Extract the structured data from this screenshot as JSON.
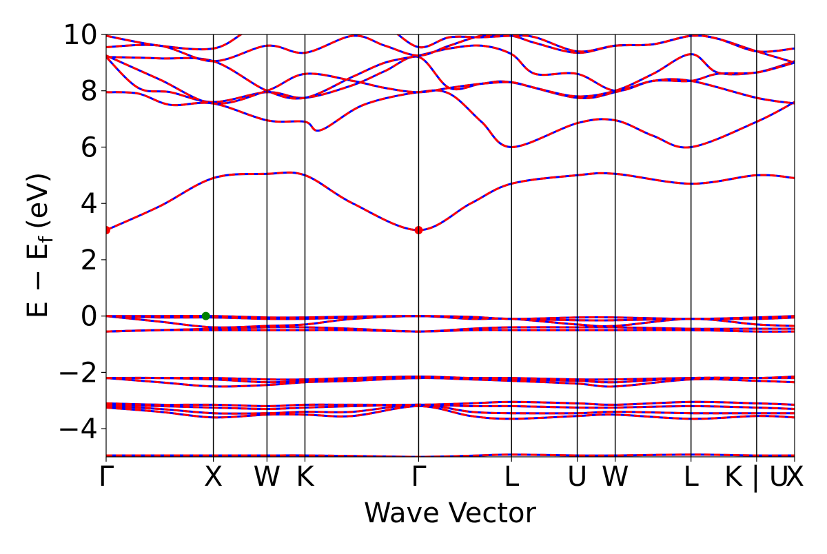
{
  "chart_data": {
    "type": "line",
    "xlabel": "Wave Vector",
    "ylabel": "E − E",
    "ylabel_sub": "f",
    "ylabel_unit": "(eV)",
    "ylim": [
      -5,
      10
    ],
    "yticks": [
      -4,
      -2,
      0,
      2,
      4,
      6,
      8,
      10
    ],
    "ytick_labels": [
      "−4",
      "−2",
      "0",
      "2",
      "4",
      "6",
      "8",
      "10"
    ],
    "grid": false,
    "kpath_labels": [
      {
        "label": "Γ",
        "x": 0.0
      },
      {
        "label": "X",
        "x": 1.0
      },
      {
        "label": "W",
        "x": 1.5
      },
      {
        "label": "K",
        "x": 1.854
      },
      {
        "label": "Γ",
        "x": 2.914
      },
      {
        "label": "L",
        "x": 3.78
      },
      {
        "label": "U",
        "x": 4.393
      },
      {
        "label": "W",
        "x": 4.747
      },
      {
        "label": "L",
        "x": 5.454
      },
      {
        "label": "K | U",
        "x": 6.066
      },
      {
        "label": "X",
        "x": 6.42
      }
    ],
    "kpath_separators": [
      1.0,
      1.5,
      1.854,
      2.914,
      3.78,
      4.393,
      4.747,
      5.454,
      6.066
    ],
    "xlim": [
      0.0,
      6.42
    ],
    "series_styles": [
      {
        "color": "#0000ff",
        "dash": "solid"
      },
      {
        "color": "#ff0000",
        "dash": "dashed"
      }
    ],
    "bands": [
      {
        "x": [
          0,
          0.5,
          1.0,
          1.5,
          1.854,
          2.3,
          2.914,
          3.4,
          3.78,
          4.393,
          4.747,
          5.454,
          6.066,
          6.42
        ],
        "y": [
          -4.95,
          -4.95,
          -4.95,
          -4.95,
          -4.95,
          -4.97,
          -5.0,
          -4.96,
          -4.92,
          -4.95,
          -4.95,
          -4.92,
          -4.95,
          -4.95
        ]
      },
      {
        "x": [
          0,
          0.5,
          1.0,
          1.5,
          1.854,
          2.3,
          2.914,
          3.4,
          3.78,
          4.393,
          4.747,
          5.454,
          6.066,
          6.42
        ],
        "y": [
          -3.25,
          -3.4,
          -3.6,
          -3.5,
          -3.5,
          -3.55,
          -3.2,
          -3.55,
          -3.65,
          -3.55,
          -3.5,
          -3.65,
          -3.55,
          -3.6
        ]
      },
      {
        "x": [
          0,
          0.5,
          1.0,
          1.5,
          1.854,
          2.3,
          2.914,
          3.4,
          3.78,
          4.393,
          4.747,
          5.454,
          6.066,
          6.42
        ],
        "y": [
          -3.2,
          -3.3,
          -3.45,
          -3.45,
          -3.4,
          -3.4,
          -3.15,
          -3.4,
          -3.45,
          -3.45,
          -3.4,
          -3.45,
          -3.45,
          -3.45
        ]
      },
      {
        "x": [
          0,
          0.5,
          1.0,
          1.5,
          1.854,
          2.3,
          2.914,
          3.4,
          3.78,
          4.393,
          4.747,
          5.454,
          6.066,
          6.42
        ],
        "y": [
          -3.15,
          -3.2,
          -3.25,
          -3.3,
          -3.25,
          -3.2,
          -3.15,
          -3.2,
          -3.2,
          -3.25,
          -3.25,
          -3.2,
          -3.25,
          -3.3
        ]
      },
      {
        "x": [
          0,
          0.5,
          1.0,
          1.5,
          1.854,
          2.3,
          2.914,
          3.4,
          3.78,
          4.393,
          4.747,
          5.454,
          6.066,
          6.42
        ],
        "y": [
          -3.1,
          -3.15,
          -3.15,
          -3.2,
          -3.15,
          -3.15,
          -3.15,
          -3.1,
          -3.05,
          -3.1,
          -3.15,
          -3.05,
          -3.1,
          -3.15
        ]
      },
      {
        "x": [
          0,
          0.5,
          1.0,
          1.5,
          1.854,
          2.3,
          2.914,
          3.4,
          3.78,
          4.393,
          4.747,
          5.454,
          6.066,
          6.42
        ],
        "y": [
          -2.2,
          -2.35,
          -2.5,
          -2.45,
          -2.35,
          -2.3,
          -2.2,
          -2.25,
          -2.3,
          -2.4,
          -2.5,
          -2.25,
          -2.3,
          -2.35
        ]
      },
      {
        "x": [
          0,
          0.5,
          1.0,
          1.5,
          1.854,
          2.3,
          2.914,
          3.4,
          3.78,
          4.393,
          4.747,
          5.454,
          6.066,
          6.42
        ],
        "y": [
          -2.2,
          -2.2,
          -2.25,
          -2.35,
          -2.3,
          -2.25,
          -2.2,
          -2.2,
          -2.25,
          -2.3,
          -2.35,
          -2.2,
          -2.2,
          -2.2
        ]
      },
      {
        "x": [
          0,
          0.5,
          1.0,
          1.5,
          1.854,
          2.3,
          2.914,
          3.4,
          3.78,
          4.393,
          4.747,
          5.454,
          6.066,
          6.42
        ],
        "y": [
          -2.2,
          -2.2,
          -2.2,
          -2.25,
          -2.25,
          -2.2,
          -2.15,
          -2.2,
          -2.2,
          -2.25,
          -2.25,
          -2.2,
          -2.2,
          -2.15
        ]
      },
      {
        "x": [
          0,
          0.5,
          1.0,
          1.5,
          1.854,
          2.3,
          2.914,
          3.4,
          3.78,
          4.393,
          4.747,
          5.454,
          6.066,
          6.42
        ],
        "y": [
          -0.55,
          -0.5,
          -0.5,
          -0.5,
          -0.5,
          -0.5,
          -0.55,
          -0.5,
          -0.5,
          -0.5,
          -0.5,
          -0.5,
          -0.55,
          -0.55
        ]
      },
      {
        "x": [
          0,
          0.5,
          1.0,
          1.5,
          1.854,
          2.3,
          2.914,
          3.4,
          3.78,
          4.393,
          4.747,
          5.454,
          6.066,
          6.42
        ],
        "y": [
          -0.55,
          -0.5,
          -0.45,
          -0.4,
          -0.4,
          -0.45,
          -0.55,
          -0.45,
          -0.4,
          -0.4,
          -0.4,
          -0.45,
          -0.45,
          -0.45
        ]
      },
      {
        "x": [
          0,
          0.5,
          1.0,
          1.5,
          1.854,
          2.3,
          2.914,
          3.4,
          3.78,
          4.393,
          4.747,
          5.454,
          6.066,
          6.42
        ],
        "y": [
          0.0,
          -0.2,
          -0.4,
          -0.35,
          -0.3,
          -0.1,
          0.0,
          -0.1,
          -0.1,
          -0.3,
          -0.35,
          -0.1,
          -0.3,
          -0.35
        ]
      },
      {
        "x": [
          0,
          0.5,
          1.0,
          1.5,
          1.854,
          2.3,
          2.914,
          3.4,
          3.78,
          4.393,
          4.747,
          5.454,
          6.066,
          6.42
        ],
        "y": [
          0.0,
          -0.05,
          -0.05,
          -0.1,
          -0.1,
          -0.05,
          0.0,
          -0.05,
          -0.1,
          -0.15,
          -0.15,
          -0.1,
          -0.1,
          -0.05
        ]
      },
      {
        "x": [
          0,
          0.5,
          1.0,
          1.5,
          1.854,
          2.3,
          2.914,
          3.4,
          3.78,
          4.393,
          4.747,
          5.454,
          6.066,
          6.42
        ],
        "y": [
          0.0,
          0.0,
          0.0,
          -0.05,
          -0.05,
          -0.02,
          0.0,
          -0.03,
          -0.1,
          -0.05,
          -0.05,
          -0.1,
          -0.05,
          0.0
        ]
      },
      {
        "x": [
          0,
          0.5,
          1.0,
          1.5,
          1.854,
          2.3,
          2.914,
          3.4,
          3.78,
          4.393,
          4.747,
          5.454,
          6.066,
          6.42
        ],
        "y": [
          3.05,
          3.9,
          4.9,
          5.05,
          5.0,
          4.0,
          3.05,
          4.0,
          4.7,
          5.0,
          5.05,
          4.7,
          5.0,
          4.9
        ]
      },
      {
        "x": [
          0,
          0.3,
          0.6,
          1.0,
          1.5,
          1.854,
          2.0,
          2.4,
          2.914,
          3.2,
          3.5,
          3.78,
          4.393,
          4.747,
          5.1,
          5.454,
          6.066,
          6.42
        ],
        "y": [
          7.95,
          7.9,
          7.5,
          7.55,
          6.95,
          6.9,
          6.6,
          7.5,
          7.95,
          7.9,
          6.9,
          6.0,
          6.85,
          6.95,
          6.4,
          6.0,
          6.9,
          7.6
        ]
      },
      {
        "x": [
          0,
          0.3,
          0.6,
          1.0,
          1.5,
          1.854,
          2.3,
          2.6,
          2.914,
          3.2,
          3.5,
          3.78,
          4.393,
          4.747,
          5.1,
          5.454,
          6.066,
          6.42
        ],
        "y": [
          9.2,
          8.1,
          7.95,
          7.6,
          7.95,
          7.75,
          8.2,
          8.7,
          9.2,
          8.1,
          8.25,
          8.3,
          7.75,
          7.95,
          8.35,
          8.35,
          7.75,
          7.55
        ]
      },
      {
        "x": [
          0,
          0.5,
          1.0,
          1.5,
          1.854,
          2.3,
          2.6,
          2.914,
          3.2,
          3.5,
          3.78,
          4.0,
          4.393,
          4.747,
          5.1,
          5.454,
          5.7,
          6.066,
          6.42
        ],
        "y": [
          9.25,
          8.4,
          7.55,
          8.0,
          8.6,
          8.35,
          8.1,
          7.95,
          8.1,
          8.25,
          8.3,
          8.1,
          7.8,
          8.0,
          8.6,
          9.3,
          8.65,
          8.65,
          9.05
        ]
      },
      {
        "x": [
          0,
          0.5,
          1.0,
          1.5,
          1.854,
          2.3,
          2.6,
          2.914,
          3.2,
          3.5,
          3.78,
          4.0,
          4.393,
          4.747,
          5.1,
          5.454,
          5.7,
          6.066,
          6.42
        ],
        "y": [
          9.2,
          9.15,
          9.05,
          8.0,
          7.75,
          8.5,
          9.0,
          9.25,
          9.5,
          9.6,
          9.3,
          8.6,
          8.6,
          8.0,
          8.35,
          8.35,
          8.6,
          8.65,
          9.0
        ]
      },
      {
        "x": [
          0,
          0.5,
          1.0,
          1.5,
          1.854,
          2.3,
          2.6,
          2.914,
          3.2,
          3.5,
          3.78,
          4.0,
          4.393,
          4.747,
          5.1,
          5.454,
          5.7,
          6.066,
          6.42
        ],
        "y": [
          9.55,
          9.6,
          9.05,
          9.6,
          9.35,
          9.95,
          9.6,
          9.25,
          9.6,
          9.95,
          9.95,
          9.7,
          9.35,
          9.6,
          9.65,
          9.95,
          9.85,
          9.4,
          9.0
        ]
      },
      {
        "x": [
          0,
          0.5,
          1.0,
          1.3,
          1.5,
          1.854,
          2.3,
          2.6,
          2.914,
          3.2,
          3.5,
          3.78,
          4.0,
          4.393,
          4.747,
          5.1,
          5.454,
          5.7,
          6.066,
          6.42
        ],
        "y": [
          9.95,
          9.6,
          9.5,
          10.1,
          10.5,
          10.5,
          10.5,
          10.3,
          9.55,
          9.9,
          9.9,
          9.95,
          9.9,
          9.4,
          9.6,
          9.65,
          9.95,
          9.85,
          9.4,
          9.5
        ]
      }
    ],
    "markers": [
      {
        "x": 0.0,
        "y": 3.05,
        "color": "#ff0000"
      },
      {
        "x": 2.914,
        "y": 3.05,
        "color": "#ff0000"
      },
      {
        "x": 0.93,
        "y": 0.0,
        "color": "#008000"
      }
    ]
  }
}
